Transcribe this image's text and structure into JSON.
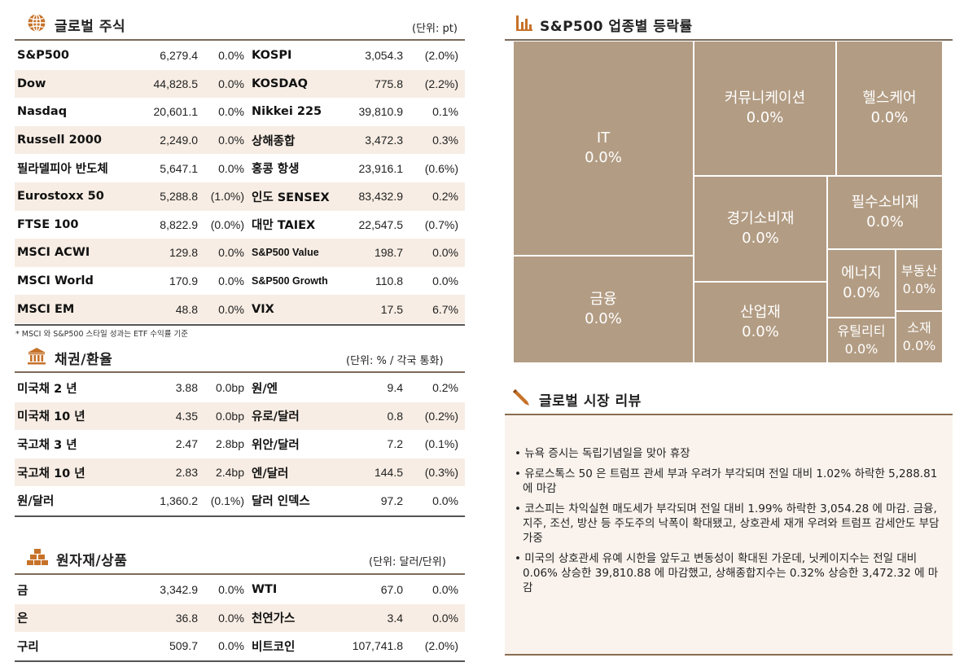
{
  "global_stocks": {
    "title": "글로벌 주식",
    "unit": "(단위: pt)",
    "rows": [
      {
        "n1": "S&P500",
        "v1": "6,279.4",
        "c1": "0.0%",
        "n2": "KOSPI",
        "v2": "3,054.3",
        "c2": "(2.0%)"
      },
      {
        "n1": "Dow",
        "v1": "44,828.5",
        "c1": "0.0%",
        "n2": "KOSDAQ",
        "v2": "775.8",
        "c2": "(2.2%)"
      },
      {
        "n1": "Nasdaq",
        "v1": "20,601.1",
        "c1": "0.0%",
        "n2": "Nikkei 225",
        "v2": "39,810.9",
        "c2": "0.1%"
      },
      {
        "n1": "Russell 2000",
        "v1": "2,249.0",
        "c1": "0.0%",
        "n2": "상해종합",
        "v2": "3,472.3",
        "c2": "0.3%"
      },
      {
        "n1": "필라델피아 반도체",
        "v1": "5,647.1",
        "c1": "0.0%",
        "n2": "홍콩 항생",
        "v2": "23,916.1",
        "c2": "(0.6%)"
      },
      {
        "n1": "Eurostoxx 50",
        "v1": "5,288.8",
        "c1": "(1.0%)",
        "n2": "인도 SENSEX",
        "v2": "83,432.9",
        "c2": "0.2%"
      },
      {
        "n1": "FTSE 100",
        "v1": "8,822.9",
        "c1": "(0.0%)",
        "n2": "대만 TAIEX",
        "v2": "22,547.5",
        "c2": "(0.7%)"
      },
      {
        "n1": "MSCI ACWI",
        "v1": "129.8",
        "c1": "0.0%",
        "n2": "S&P500 Value",
        "v2": "198.7",
        "c2": "0.0%"
      },
      {
        "n1": "MSCI World",
        "v1": "170.9",
        "c1": "0.0%",
        "n2": "S&P500 Growth",
        "v2": "110.8",
        "c2": "0.0%"
      },
      {
        "n1": "MSCI EM",
        "v1": "48.8",
        "c1": "0.0%",
        "n2": "VIX",
        "v2": "17.5",
        "c2": "6.7%"
      }
    ],
    "footnote": "* MSCI 와 S&P500 스타일 성과는 ETF 수익률 기준"
  },
  "bonds_fx": {
    "title": "채권/환율",
    "unit": "(단위: % / 각국 통화)",
    "rows": [
      {
        "n1": "미국채 2 년",
        "v1": "3.88",
        "c1": "0.0bp",
        "n2": "원/엔",
        "v2": "9.4",
        "c2": "0.2%"
      },
      {
        "n1": "미국채 10 년",
        "v1": "4.35",
        "c1": "0.0bp",
        "n2": "유로/달러",
        "v2": "0.8",
        "c2": "(0.2%)"
      },
      {
        "n1": "국고채 3 년",
        "v1": "2.47",
        "c1": "2.8bp",
        "n2": "위안/달러",
        "v2": "7.2",
        "c2": "(0.1%)"
      },
      {
        "n1": "국고채 10 년",
        "v1": "2.83",
        "c1": "2.4bp",
        "n2": "엔/달러",
        "v2": "144.5",
        "c2": "(0.3%)"
      },
      {
        "n1": "원/달러",
        "v1": "1,360.2",
        "c1": "(0.1%)",
        "n2": "달러 인덱스",
        "v2": "97.2",
        "c2": "0.0%"
      }
    ]
  },
  "commodities": {
    "title": "원자재/상품",
    "unit": "(단위: 달러/단위)",
    "rows": [
      {
        "n1": "금",
        "v1": "3,342.9",
        "c1": "0.0%",
        "n2": "WTI",
        "v2": "67.0",
        "c2": "0.0%"
      },
      {
        "n1": "은",
        "v1": "36.8",
        "c1": "0.0%",
        "n2": "천연가스",
        "v2": "3.4",
        "c2": "0.0%"
      },
      {
        "n1": "구리",
        "v1": "509.7",
        "c1": "0.0%",
        "n2": "비트코인",
        "v2": "107,741.8",
        "c2": "(2.0%)"
      }
    ]
  },
  "sector_map": {
    "title": "S&P500 업종별 등락률",
    "cells": [
      {
        "label": "IT",
        "value": "0.0%"
      },
      {
        "label": "금융",
        "value": "0.0%"
      },
      {
        "label": "커뮤니케이션",
        "value": "0.0%"
      },
      {
        "label": "헬스케어",
        "value": "0.0%"
      },
      {
        "label": "경기소비재",
        "value": "0.0%"
      },
      {
        "label": "필수소비재",
        "value": "0.0%"
      },
      {
        "label": "산업재",
        "value": "0.0%"
      },
      {
        "label": "에너지",
        "value": "0.0%"
      },
      {
        "label": "부동산",
        "value": "0.0%"
      },
      {
        "label": "유틸리티",
        "value": "0.0%"
      },
      {
        "label": "소재",
        "value": "0.0%"
      }
    ]
  },
  "review": {
    "title": "글로벌 시장 리뷰",
    "items": [
      "뉴욕 증시는 독립기념일을 맞아 휴장",
      "유로스톡스 50 은 트럼프 관세 부과 우려가 부각되며 전일 대비 1.02% 하락한 5,288.81 에 마감",
      "코스피는 차익실현 매도세가 부각되며 전일 대비 1.99% 하락한 3,054.28 에 마감. 금융, 지주, 조선, 방산 등 주도주의 낙폭이 확대됐고, 상호관세 재개 우려와 트럼프 감세안도 부담 가중",
      "미국의 상호관세 유예 시한을 앞두고 변동성이 확대된 가운데, 닛케이지수는 전일 대비 0.06% 상승한 39,810.88 에 마감했고, 상해종합지수는 0.32% 상승한 3,472.32 에 마감"
    ]
  },
  "icons": {
    "global_stocks": "globe-icon",
    "bonds_fx": "bank-icon",
    "commodities": "gold-bars-icon",
    "sector_map": "bar-chart-icon",
    "review": "pen-icon"
  },
  "colors": {
    "accent": "#c6722a",
    "treemap_fill": "#b29c83",
    "row_alt": "#f7ede4"
  }
}
